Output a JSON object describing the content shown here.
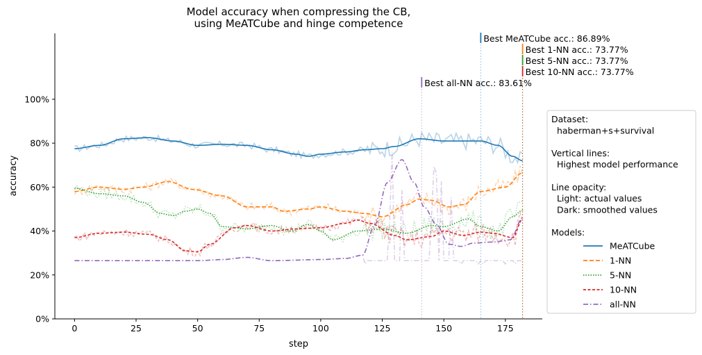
{
  "chart_data": {
    "type": "line",
    "title": "Model accuracy when compressing the CB,\nusing MeATCube and hinge competence",
    "xlabel": "step",
    "ylabel": "accuracy",
    "xlim": [
      -8,
      190
    ],
    "ylim": [
      0,
      1.3
    ],
    "xticks": [
      0,
      25,
      50,
      75,
      100,
      125,
      150,
      175
    ],
    "yticks": [
      0,
      0.2,
      0.4,
      0.6,
      0.8,
      1.0
    ],
    "ytick_labels": [
      "0%",
      "20%",
      "40%",
      "60%",
      "80%",
      "100%"
    ],
    "grid": false,
    "legend": {
      "placement": "right",
      "lines": [
        "Dataset:",
        "  haberman+s+survival",
        "",
        "Vertical lines:",
        "  Highest model performance",
        "",
        "Line opacity:",
        "  Light: actual values",
        "  Dark: smoothed values",
        "",
        "Models:"
      ]
    },
    "series": [
      {
        "name": "MeATCube",
        "color": "#1f77b4",
        "dash": "",
        "smoothed": [
          [
            0,
            0.775
          ],
          [
            10,
            0.79
          ],
          [
            20,
            0.82
          ],
          [
            30,
            0.825
          ],
          [
            40,
            0.81
          ],
          [
            50,
            0.79
          ],
          [
            60,
            0.795
          ],
          [
            70,
            0.79
          ],
          [
            80,
            0.77
          ],
          [
            90,
            0.75
          ],
          [
            95,
            0.74
          ],
          [
            100,
            0.75
          ],
          [
            110,
            0.76
          ],
          [
            118,
            0.77
          ],
          [
            125,
            0.775
          ],
          [
            130,
            0.785
          ],
          [
            140,
            0.82
          ],
          [
            150,
            0.81
          ],
          [
            160,
            0.81
          ],
          [
            165,
            0.81
          ],
          [
            172,
            0.79
          ],
          [
            178,
            0.74
          ],
          [
            182,
            0.72
          ]
        ],
        "best_step": 165,
        "best_label": "Best MeATCube acc.: 86.89%"
      },
      {
        "name": "1-NN",
        "color": "#ff7f0e",
        "dash": "6,3",
        "smoothed": [
          [
            0,
            0.58
          ],
          [
            10,
            0.6
          ],
          [
            20,
            0.59
          ],
          [
            28,
            0.6
          ],
          [
            38,
            0.625
          ],
          [
            48,
            0.59
          ],
          [
            60,
            0.56
          ],
          [
            70,
            0.51
          ],
          [
            80,
            0.51
          ],
          [
            85,
            0.49
          ],
          [
            95,
            0.5
          ],
          [
            100,
            0.51
          ],
          [
            110,
            0.49
          ],
          [
            118,
            0.48
          ],
          [
            125,
            0.465
          ],
          [
            135,
            0.52
          ],
          [
            140,
            0.545
          ],
          [
            145,
            0.54
          ],
          [
            152,
            0.51
          ],
          [
            158,
            0.52
          ],
          [
            165,
            0.58
          ],
          [
            175,
            0.6
          ],
          [
            182,
            0.665
          ]
        ],
        "best_step": 182,
        "best_label": "Best 1-NN acc.: 73.77%"
      },
      {
        "name": "5-NN",
        "color": "#2ca02c",
        "dash": "1.5,2",
        "smoothed": [
          [
            0,
            0.595
          ],
          [
            10,
            0.57
          ],
          [
            20,
            0.56
          ],
          [
            28,
            0.53
          ],
          [
            35,
            0.48
          ],
          [
            40,
            0.47
          ],
          [
            45,
            0.49
          ],
          [
            50,
            0.5
          ],
          [
            55,
            0.48
          ],
          [
            60,
            0.42
          ],
          [
            70,
            0.41
          ],
          [
            80,
            0.425
          ],
          [
            88,
            0.4
          ],
          [
            95,
            0.43
          ],
          [
            100,
            0.4
          ],
          [
            105,
            0.36
          ],
          [
            115,
            0.4
          ],
          [
            125,
            0.41
          ],
          [
            135,
            0.39
          ],
          [
            145,
            0.425
          ],
          [
            150,
            0.42
          ],
          [
            160,
            0.455
          ],
          [
            165,
            0.42
          ],
          [
            172,
            0.4
          ],
          [
            178,
            0.465
          ],
          [
            182,
            0.495
          ]
        ],
        "best_step": 182,
        "best_label": "Best 5-NN acc.: 73.77%"
      },
      {
        "name": "10-NN",
        "color": "#d62728",
        "dash": "4,2.5",
        "smoothed": [
          [
            0,
            0.37
          ],
          [
            10,
            0.39
          ],
          [
            20,
            0.395
          ],
          [
            30,
            0.385
          ],
          [
            38,
            0.36
          ],
          [
            45,
            0.31
          ],
          [
            50,
            0.305
          ],
          [
            55,
            0.34
          ],
          [
            65,
            0.415
          ],
          [
            70,
            0.425
          ],
          [
            80,
            0.4
          ],
          [
            90,
            0.41
          ],
          [
            100,
            0.415
          ],
          [
            110,
            0.435
          ],
          [
            115,
            0.45
          ],
          [
            120,
            0.435
          ],
          [
            130,
            0.38
          ],
          [
            135,
            0.36
          ],
          [
            145,
            0.375
          ],
          [
            150,
            0.4
          ],
          [
            158,
            0.38
          ],
          [
            165,
            0.395
          ],
          [
            170,
            0.39
          ],
          [
            178,
            0.37
          ],
          [
            182,
            0.455
          ]
        ],
        "best_step": 182,
        "best_label": "Best 10-NN acc.: 73.77%"
      },
      {
        "name": "all-NN",
        "color": "#9467bd",
        "dash": "7,3,1.5,3",
        "smoothed": [
          [
            0,
            0.265
          ],
          [
            50,
            0.265
          ],
          [
            60,
            0.27
          ],
          [
            70,
            0.28
          ],
          [
            80,
            0.265
          ],
          [
            100,
            0.27
          ],
          [
            110,
            0.275
          ],
          [
            117,
            0.29
          ],
          [
            122,
            0.43
          ],
          [
            127,
            0.62
          ],
          [
            133,
            0.725
          ],
          [
            138,
            0.62
          ],
          [
            142,
            0.51
          ],
          [
            147,
            0.43
          ],
          [
            152,
            0.34
          ],
          [
            157,
            0.33
          ],
          [
            162,
            0.345
          ],
          [
            170,
            0.35
          ],
          [
            177,
            0.36
          ],
          [
            182,
            0.46
          ]
        ],
        "best_step": 141,
        "best_label": "Best all-NN acc.: 83.61%"
      }
    ]
  }
}
